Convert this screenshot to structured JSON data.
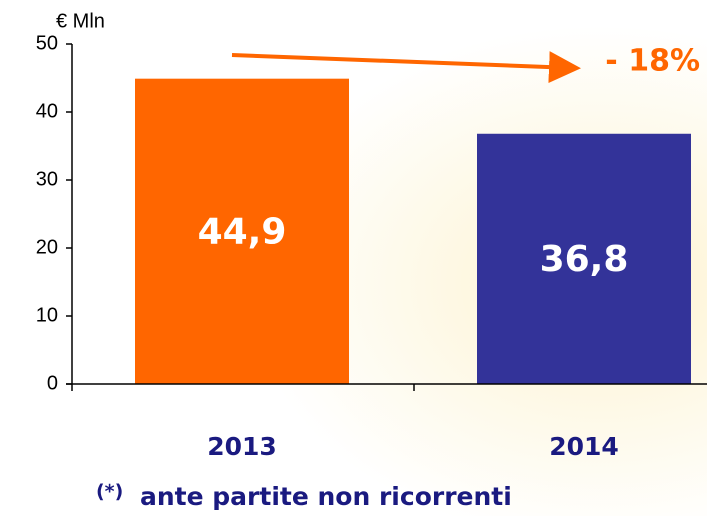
{
  "chart_data": {
    "type": "bar",
    "y_label": "€ Mln",
    "categories": [
      "2013",
      "2014"
    ],
    "values": [
      44.9,
      36.8
    ],
    "value_labels": [
      "44,9",
      "36,8"
    ],
    "colors": [
      "#ff6600",
      "#333399"
    ],
    "ylim": [
      0,
      50
    ],
    "yticks": [
      0,
      10,
      20,
      30,
      40,
      50
    ],
    "annotation": "- 18%",
    "footnote_marker": "(*)",
    "footnote": "ante partite non ricorrenti"
  }
}
